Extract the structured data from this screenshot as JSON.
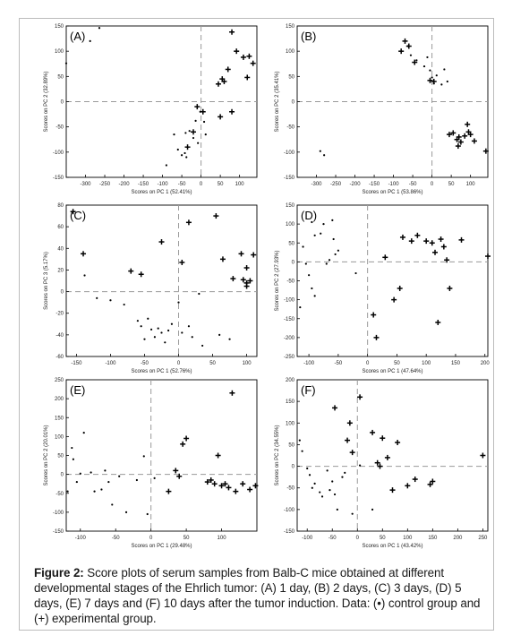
{
  "caption": {
    "label": "Figure 2:",
    "text": "Score plots of serum samples from Balb-C mice obtained at different developmental stages of the Ehrlich tumor: (A) 1 day, (B) 2 days, (C) 3 days, (D) 5 days, (E) 7 days and (F) 10 days after the tumor induction. Data: (•) control group and (+) experimental group."
  },
  "chart_data": [
    {
      "type": "scatter",
      "panel": "(A)",
      "xlabel": "Scores on PC 1 (52.41%)",
      "ylabel": "Scores on PC 2 (32.89%)",
      "xlim": [
        -350,
        145
      ],
      "ylim": [
        -150,
        150
      ],
      "xticks": [
        -300,
        -250,
        -200,
        -150,
        -100,
        -50,
        0,
        50,
        100
      ],
      "yticks": [
        -150,
        -100,
        -50,
        0,
        50,
        100,
        150
      ],
      "series": [
        {
          "marker": "dot",
          "points": [
            [
              -350,
              76
            ],
            [
              -288,
              120
            ],
            [
              -264,
              146
            ],
            [
              -70,
              -65
            ],
            [
              -40,
              -62
            ],
            [
              -30,
              -58
            ],
            [
              -20,
              -72
            ],
            [
              -14,
              -38
            ],
            [
              -8,
              -82
            ],
            [
              -2,
              -20
            ],
            [
              8,
              -40
            ],
            [
              12,
              -65
            ],
            [
              -38,
              -110
            ],
            [
              -42,
              -102
            ],
            [
              -50,
              -106
            ],
            [
              -60,
              -95
            ],
            [
              -90,
              -126
            ]
          ]
        },
        {
          "marker": "plus",
          "points": [
            [
              -10,
              -10
            ],
            [
              -20,
              -60
            ],
            [
              5,
              -20
            ],
            [
              -35,
              -90
            ],
            [
              45,
              35
            ],
            [
              55,
              45
            ],
            [
              60,
              40
            ],
            [
              70,
              64
            ],
            [
              80,
              138
            ],
            [
              92,
              100
            ],
            [
              110,
              88
            ],
            [
              125,
              90
            ],
            [
              135,
              76
            ],
            [
              120,
              48
            ],
            [
              80,
              -20
            ],
            [
              50,
              -30
            ]
          ]
        }
      ]
    },
    {
      "type": "scatter",
      "panel": "(B)",
      "xlabel": "Scores on PC 1 (53.86%)",
      "ylabel": "Scores on PC 2 (35.41%)",
      "xlim": [
        -350,
        145
      ],
      "ylim": [
        -150,
        150
      ],
      "xticks": [
        -300,
        -250,
        -200,
        -150,
        -100,
        -50,
        0,
        50,
        100
      ],
      "yticks": [
        -150,
        -100,
        -50,
        0,
        50,
        100,
        150
      ],
      "series": [
        {
          "marker": "dot",
          "points": [
            [
              -290,
              -98
            ],
            [
              -280,
              -106
            ],
            [
              -62,
              110
            ],
            [
              -55,
              92
            ],
            [
              -40,
              82
            ],
            [
              -20,
              70
            ],
            [
              -12,
              88
            ],
            [
              -5,
              62
            ],
            [
              0,
              48
            ],
            [
              5,
              36
            ],
            [
              12,
              52
            ],
            [
              25,
              34
            ],
            [
              32,
              64
            ],
            [
              40,
              40
            ]
          ]
        },
        {
          "marker": "plus",
          "points": [
            [
              -80,
              100
            ],
            [
              -70,
              120
            ],
            [
              -60,
              110
            ],
            [
              -45,
              78
            ],
            [
              -5,
              42
            ],
            [
              5,
              40
            ],
            [
              45,
              -65
            ],
            [
              55,
              -62
            ],
            [
              65,
              -75
            ],
            [
              68,
              -88
            ],
            [
              70,
              -70
            ],
            [
              75,
              -80
            ],
            [
              85,
              -68
            ],
            [
              92,
              -45
            ],
            [
              95,
              -60
            ],
            [
              100,
              -65
            ],
            [
              110,
              -78
            ],
            [
              140,
              -98
            ]
          ]
        }
      ]
    },
    {
      "type": "scatter",
      "panel": "(C)",
      "xlabel": "Scores on PC 1 (52.76%)",
      "ylabel": "Scores on PC 3 (5.17%)",
      "xlim": [
        -165,
        115
      ],
      "ylim": [
        -60,
        80
      ],
      "xticks": [
        -150,
        -100,
        -50,
        0,
        50,
        100
      ],
      "yticks": [
        -60,
        -40,
        -20,
        0,
        20,
        40,
        60,
        80
      ],
      "series": [
        {
          "marker": "dot",
          "points": [
            [
              -138,
              15
            ],
            [
              -120,
              -6
            ],
            [
              -100,
              -8
            ],
            [
              -80,
              -12
            ],
            [
              -60,
              -27
            ],
            [
              -55,
              -32
            ],
            [
              -50,
              -44
            ],
            [
              -45,
              -25
            ],
            [
              -40,
              -35
            ],
            [
              -35,
              -42
            ],
            [
              -30,
              -34
            ],
            [
              -25,
              -38
            ],
            [
              -20,
              -47
            ],
            [
              -15,
              -36
            ],
            [
              -10,
              -30
            ],
            [
              0,
              -10
            ],
            [
              5,
              -38
            ],
            [
              15,
              -32
            ],
            [
              20,
              -42
            ],
            [
              30,
              -2
            ],
            [
              35,
              -50
            ],
            [
              60,
              -40
            ],
            [
              75,
              -44
            ]
          ]
        },
        {
          "marker": "plus",
          "points": [
            [
              -155,
              74
            ],
            [
              -140,
              35
            ],
            [
              -70,
              19
            ],
            [
              -55,
              16
            ],
            [
              -25,
              46
            ],
            [
              5,
              27
            ],
            [
              15,
              64
            ],
            [
              55,
              70
            ],
            [
              65,
              30
            ],
            [
              80,
              12
            ],
            [
              92,
              35
            ],
            [
              95,
              11
            ],
            [
              100,
              22
            ],
            [
              100,
              8
            ],
            [
              105,
              10
            ],
            [
              110,
              34
            ],
            [
              100,
              5
            ]
          ]
        }
      ]
    },
    {
      "type": "scatter",
      "panel": "(D)",
      "xlabel": "Scores on PC 1 (47.64%)",
      "ylabel": "Scores on PC 2 (27.93%)",
      "xlim": [
        -120,
        205
      ],
      "ylim": [
        -250,
        150
      ],
      "xticks": [
        -100,
        -50,
        0,
        50,
        100,
        150,
        200
      ],
      "yticks": [
        -250,
        -200,
        -150,
        -100,
        -50,
        0,
        50,
        100,
        150
      ],
      "series": [
        {
          "marker": "dot",
          "points": [
            [
              -110,
              40
            ],
            [
              -95,
              105
            ],
            [
              -90,
              70
            ],
            [
              -80,
              75
            ],
            [
              -75,
              100
            ],
            [
              -70,
              -5
            ],
            [
              -60,
              110
            ],
            [
              -58,
              60
            ],
            [
              -55,
              20
            ],
            [
              -50,
              30
            ],
            [
              -105,
              -5
            ],
            [
              -100,
              -35
            ],
            [
              -95,
              -70
            ],
            [
              -90,
              -90
            ],
            [
              -115,
              -120
            ],
            [
              -20,
              -30
            ],
            [
              -65,
              5
            ]
          ]
        },
        {
          "marker": "plus",
          "points": [
            [
              10,
              -140
            ],
            [
              15,
              -200
            ],
            [
              30,
              12
            ],
            [
              45,
              -100
            ],
            [
              55,
              -70
            ],
            [
              60,
              65
            ],
            [
              75,
              55
            ],
            [
              85,
              70
            ],
            [
              100,
              55
            ],
            [
              110,
              50
            ],
            [
              115,
              25
            ],
            [
              120,
              -160
            ],
            [
              125,
              60
            ],
            [
              130,
              40
            ],
            [
              135,
              5
            ],
            [
              140,
              -70
            ],
            [
              160,
              58
            ],
            [
              205,
              15
            ]
          ]
        }
      ]
    },
    {
      "type": "scatter",
      "panel": "(E)",
      "xlabel": "Scores on PC 1 (29.48%)",
      "ylabel": "Scores on PC 2 (20.01%)",
      "xlim": [
        -120,
        150
      ],
      "ylim": [
        -150,
        250
      ],
      "xticks": [
        -100,
        -50,
        0,
        50,
        100
      ],
      "yticks": [
        -150,
        -100,
        -50,
        0,
        50,
        100,
        150,
        200,
        250
      ],
      "series": [
        {
          "marker": "dot",
          "points": [
            [
              -118,
              -45
            ],
            [
              -112,
              70
            ],
            [
              -110,
              40
            ],
            [
              -105,
              -20
            ],
            [
              -100,
              2
            ],
            [
              -95,
              110
            ],
            [
              -85,
              5
            ],
            [
              -80,
              -45
            ],
            [
              -70,
              -40
            ],
            [
              -65,
              10
            ],
            [
              -60,
              -20
            ],
            [
              -55,
              -80
            ],
            [
              -45,
              -5
            ],
            [
              -35,
              -100
            ],
            [
              -20,
              -15
            ],
            [
              -5,
              -105
            ],
            [
              5,
              -10
            ],
            [
              -10,
              48
            ]
          ]
        },
        {
          "marker": "plus",
          "points": [
            [
              25,
              -45
            ],
            [
              35,
              10
            ],
            [
              40,
              -5
            ],
            [
              45,
              80
            ],
            [
              50,
              95
            ],
            [
              80,
              -20
            ],
            [
              85,
              -15
            ],
            [
              90,
              -25
            ],
            [
              95,
              50
            ],
            [
              100,
              -30
            ],
            [
              105,
              -25
            ],
            [
              110,
              -35
            ],
            [
              115,
              215
            ],
            [
              120,
              -45
            ],
            [
              130,
              -25
            ],
            [
              140,
              -40
            ],
            [
              148,
              -30
            ]
          ]
        }
      ]
    },
    {
      "type": "scatter",
      "panel": "(F)",
      "xlabel": "Scores on PC 1 (43.42%)",
      "ylabel": "Scores on PC 2 (34.55%)",
      "xlim": [
        -120,
        260
      ],
      "ylim": [
        -150,
        200
      ],
      "xticks": [
        -100,
        -50,
        0,
        50,
        100,
        150,
        200,
        250
      ],
      "yticks": [
        -150,
        -100,
        -50,
        0,
        50,
        100,
        150,
        200
      ],
      "series": [
        {
          "marker": "dot",
          "points": [
            [
              -115,
              60
            ],
            [
              -110,
              35
            ],
            [
              -100,
              -5
            ],
            [
              -95,
              -20
            ],
            [
              -90,
              -50
            ],
            [
              -85,
              -40
            ],
            [
              -75,
              -60
            ],
            [
              -70,
              -70
            ],
            [
              -60,
              -10
            ],
            [
              -55,
              -55
            ],
            [
              -50,
              -35
            ],
            [
              -45,
              -65
            ],
            [
              -40,
              -100
            ],
            [
              -30,
              -25
            ],
            [
              -25,
              -15
            ],
            [
              -10,
              -110
            ],
            [
              30,
              -100
            ],
            [
              5,
              2
            ]
          ]
        },
        {
          "marker": "plus",
          "points": [
            [
              -45,
              135
            ],
            [
              -20,
              60
            ],
            [
              -10,
              32
            ],
            [
              -15,
              100
            ],
            [
              5,
              160
            ],
            [
              30,
              78
            ],
            [
              40,
              8
            ],
            [
              45,
              0
            ],
            [
              50,
              65
            ],
            [
              60,
              20
            ],
            [
              70,
              -55
            ],
            [
              80,
              55
            ],
            [
              100,
              -45
            ],
            [
              115,
              -30
            ],
            [
              145,
              -42
            ],
            [
              150,
              -35
            ],
            [
              250,
              25
            ]
          ]
        }
      ]
    }
  ]
}
